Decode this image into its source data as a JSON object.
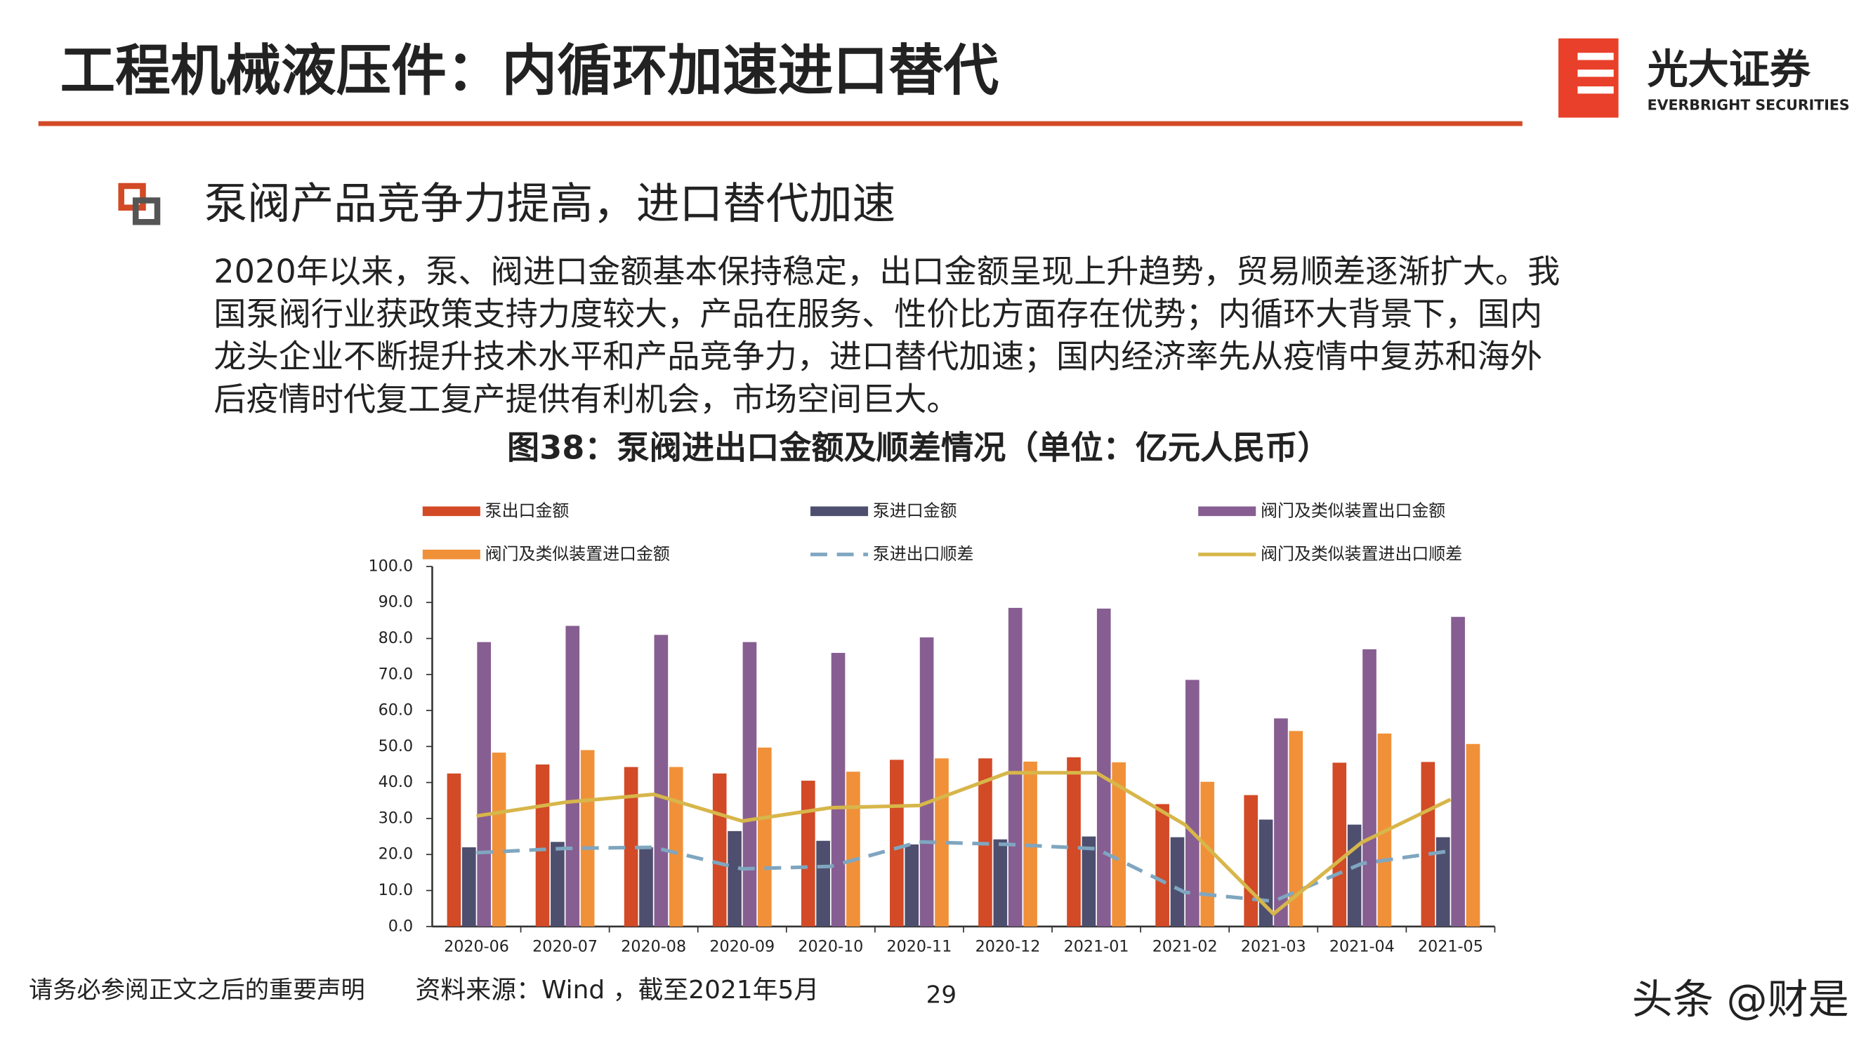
{
  "header": {
    "title": "工程机械液压件：内循环加速进口替代",
    "logo_cn": "光大证券",
    "logo_en": "EVERBRIGHT SECURITIES"
  },
  "body": {
    "heading": "泵阀产品竞争力提高，进口替代加速",
    "paragraph": [
      "2020年以来，泵、阀进口金额基本保持稳定，出口金额呈现上升趋势，贸易顺差逐渐扩大。我",
      "国泵阀行业获政策支持力度较大，产品在服务、性价比方面存在优势；内循环大背景下，国内",
      "龙头企业不断提升技术水平和产品竞争力，进口替代加速；国内经济率先从疫情中复苏和海外",
      "后疫情时代复工复产提供有利机会，市场空间巨大。"
    ]
  },
  "chart_data": {
    "type": "bar",
    "title": "图38：泵阀进出口金额及顺差情况（单位：亿元人民币）",
    "categories": [
      "2020-06",
      "2020-07",
      "2020-08",
      "2020-09",
      "2020-10",
      "2020-11",
      "2020-12",
      "2021-01",
      "2021-02",
      "2021-03",
      "2021-04",
      "2021-05"
    ],
    "series": [
      {
        "name": "泵出口金额",
        "type": "bar",
        "color": "#d24a26",
        "values": [
          42.5,
          45,
          44.3,
          42.5,
          40.5,
          46.3,
          46.7,
          47,
          34,
          36.5,
          45.5,
          45.7
        ]
      },
      {
        "name": "泵进口金额",
        "type": "bar",
        "color": "#4e4f6e",
        "values": [
          22,
          23.5,
          22,
          26.5,
          23.8,
          22.8,
          24.2,
          25,
          24.8,
          29.7,
          28.3,
          24.8
        ]
      },
      {
        "name": "阀门及类似装置出口金额",
        "type": "bar",
        "color": "#875e91",
        "values": [
          79,
          83.5,
          81,
          79,
          76,
          80.3,
          88.5,
          88.3,
          68.5,
          57.8,
          77,
          86
        ]
      },
      {
        "name": "阀门及类似装置进口金额",
        "type": "bar",
        "color": "#f0913a",
        "values": [
          48.3,
          49,
          44.3,
          49.7,
          43,
          46.7,
          45.8,
          45.6,
          40.2,
          54.3,
          53.6,
          50.7
        ]
      },
      {
        "name": "泵进出口顺差",
        "type": "line",
        "dashed": true,
        "color": "#7fa6c0",
        "values": [
          20.5,
          21.7,
          22,
          16,
          16.7,
          23.5,
          22.8,
          21.6,
          9.5,
          7,
          17.5,
          21
        ]
      },
      {
        "name": "阀门及类似装置进出口顺差",
        "type": "line",
        "dashed": false,
        "color": "#d7b64a",
        "values": [
          30.7,
          34.5,
          36.7,
          29.3,
          33,
          33.6,
          42.7,
          42.7,
          28.3,
          3.5,
          23.4,
          35.3
        ]
      }
    ],
    "ylim": [
      0,
      100
    ],
    "yticks": [
      {
        "value": 0,
        "label": "0.0"
      },
      {
        "value": 10,
        "label": "10.0"
      },
      {
        "value": 20,
        "label": "20.0"
      },
      {
        "value": 30,
        "label": "30.0"
      },
      {
        "value": 40,
        "label": "40.0"
      },
      {
        "value": 50,
        "label": "50.0"
      },
      {
        "value": 60,
        "label": "60.0"
      },
      {
        "value": 70,
        "label": "70.0"
      },
      {
        "value": 80,
        "label": "80.0"
      },
      {
        "value": 90,
        "label": "90.0"
      },
      {
        "value": 100,
        "label": "100.0"
      }
    ],
    "grid": false,
    "legend": "top"
  },
  "footer": {
    "disclaimer": "请务必参阅正文之后的重要声明",
    "source": "资料来源：Wind ，截至2021年5月",
    "page": "29",
    "watermark": "头条 @财是"
  }
}
